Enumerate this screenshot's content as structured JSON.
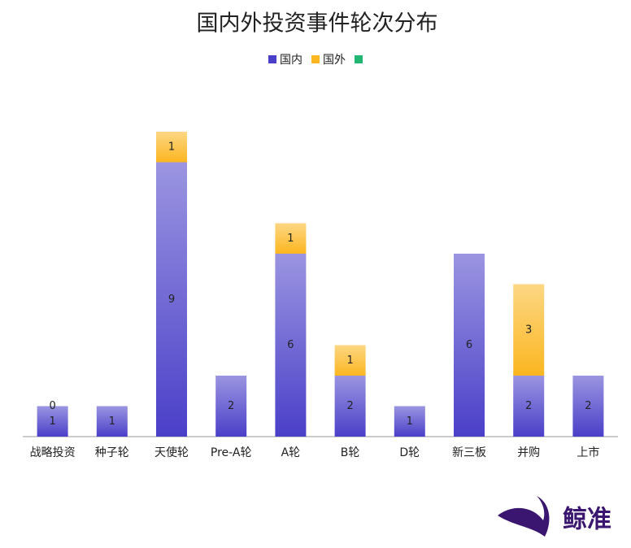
{
  "chart_data": {
    "type": "bar",
    "stacked": true,
    "title": "国内外投资事件轮次分布",
    "categories": [
      "战略投资",
      "种子轮",
      "天使轮",
      "Pre-A轮",
      "A轮",
      "B轮",
      "D轮",
      "新三板",
      "并购",
      "上市"
    ],
    "series": [
      {
        "name": "国内",
        "color": "#4a3fc8",
        "values": [
          1,
          1,
          9,
          2,
          6,
          2,
          1,
          6,
          2,
          2
        ]
      },
      {
        "name": "国外",
        "color": "#fbb620",
        "values": [
          0,
          null,
          1,
          null,
          1,
          1,
          null,
          null,
          3,
          null
        ]
      }
    ],
    "ylim": [
      0,
      10
    ],
    "legend": "top",
    "watermark": "鲸准"
  }
}
